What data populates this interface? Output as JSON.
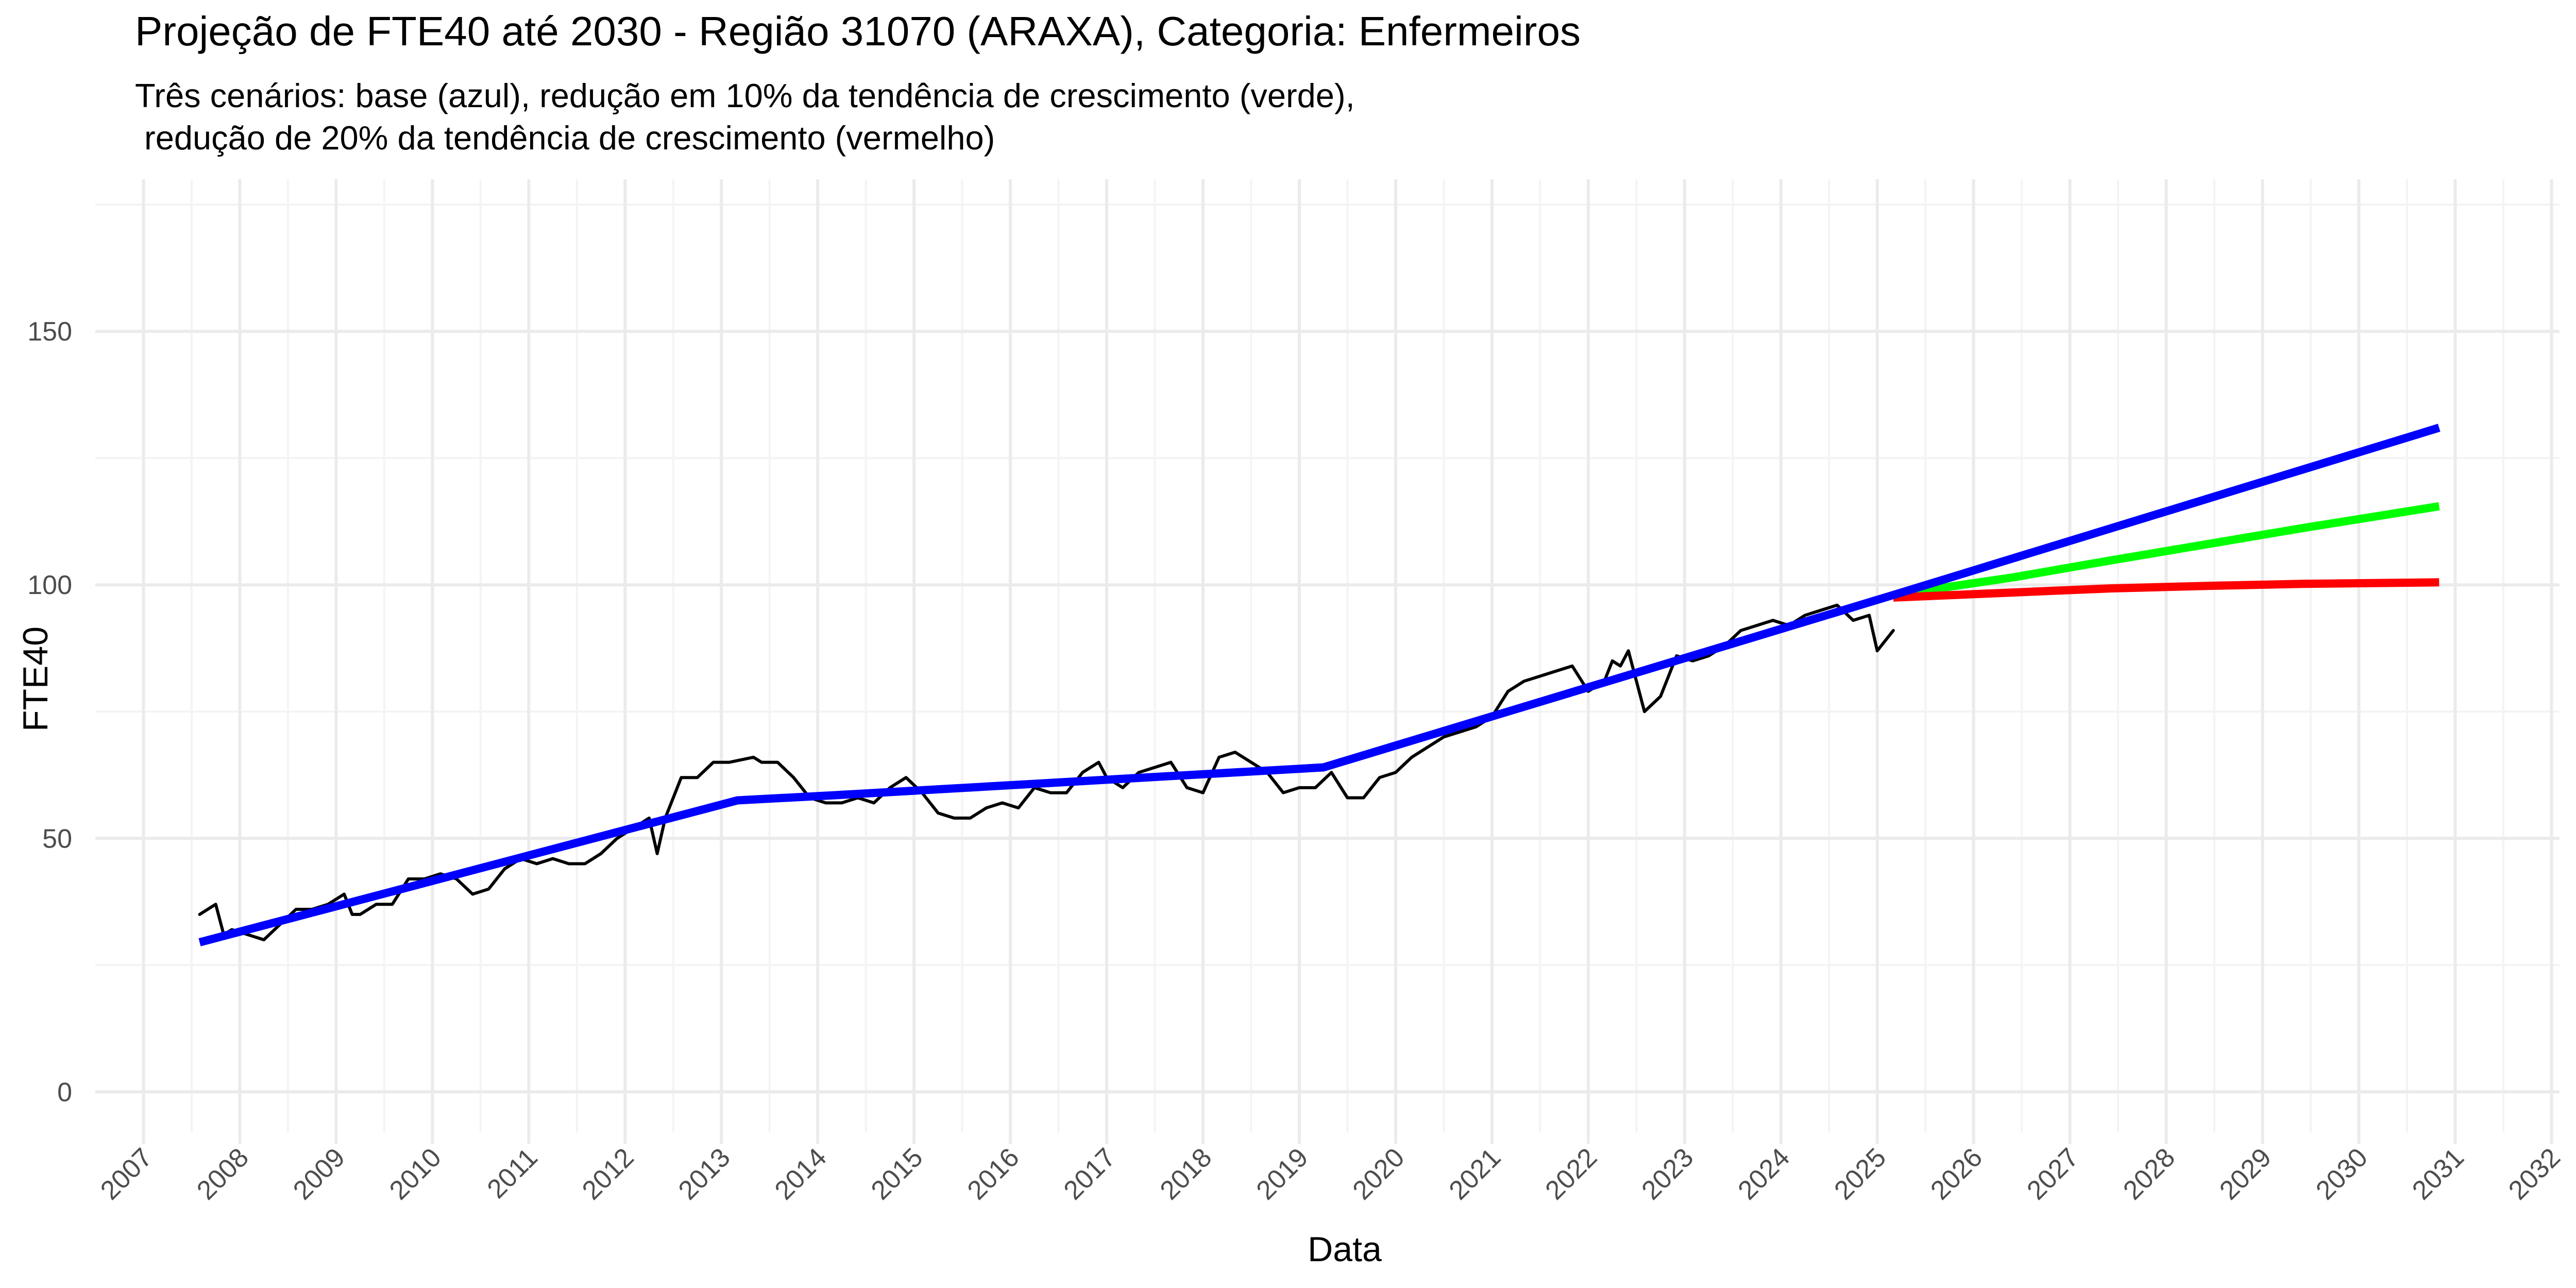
{
  "chart_data": {
    "type": "line",
    "title": "Projeção de FTE40 até 2030 - Região 31070 (ARAXA), Categoria: Enfermeiros",
    "subtitle_lines": [
      "Três cenários: base (azul), redução em 10% da tendência de crescimento (verde),",
      " redução de 20% da tendência de crescimento (vermelho)"
    ],
    "xlabel": "Data",
    "ylabel": "FTE40",
    "xlim": [
      "2006-07-01",
      "2032-02-01"
    ],
    "ylim": [
      -8,
      180
    ],
    "x_ticks": [
      "2007",
      "2008",
      "2009",
      "2010",
      "2011",
      "2012",
      "2013",
      "2014",
      "2015",
      "2016",
      "2017",
      "2018",
      "2019",
      "2020",
      "2021",
      "2022",
      "2023",
      "2024",
      "2025",
      "2026",
      "2027",
      "2028",
      "2029",
      "2030",
      "2031",
      "2032"
    ],
    "y_ticks": [
      0,
      50,
      100,
      150
    ],
    "grid": true,
    "colors": {
      "observed": "#000000",
      "base": "#0000ff",
      "green": "#00ff00",
      "red": "#ff0000",
      "grid_major": "#ebebeb",
      "grid_minor": "#f4f4f4",
      "axis_text": "#4d4d4d"
    },
    "series": [
      {
        "key": "observed",
        "x": [
          "2007-08",
          "2007-10",
          "2007-11",
          "2007-12",
          "2008-02",
          "2008-04",
          "2008-06",
          "2008-08",
          "2008-10",
          "2008-12",
          "2009-02",
          "2009-03",
          "2009-04",
          "2009-06",
          "2009-08",
          "2009-10",
          "2009-12",
          "2010-02",
          "2010-04",
          "2010-06",
          "2010-08",
          "2010-10",
          "2010-12",
          "2011-02",
          "2011-04",
          "2011-06",
          "2011-08",
          "2011-10",
          "2011-12",
          "2012-02",
          "2012-04",
          "2012-05",
          "2012-06",
          "2012-08",
          "2012-10",
          "2012-12",
          "2013-02",
          "2013-05",
          "2013-06",
          "2013-08",
          "2013-10",
          "2013-12",
          "2014-02",
          "2014-04",
          "2014-06",
          "2014-08",
          "2014-10",
          "2014-12",
          "2015-02",
          "2015-04",
          "2015-06",
          "2015-08",
          "2015-10",
          "2015-12",
          "2016-02",
          "2016-04",
          "2016-06",
          "2016-08",
          "2016-10",
          "2016-12",
          "2017-01",
          "2017-03",
          "2017-05",
          "2017-07",
          "2017-09",
          "2017-11",
          "2018-01",
          "2018-03",
          "2018-05",
          "2018-07",
          "2018-09",
          "2018-11",
          "2019-01",
          "2019-03",
          "2019-05",
          "2019-07",
          "2019-09",
          "2019-11",
          "2020-01",
          "2020-03",
          "2020-05",
          "2020-07",
          "2020-09",
          "2020-11",
          "2021-01",
          "2021-03",
          "2021-05",
          "2021-07",
          "2021-09",
          "2021-11",
          "2022-01",
          "2022-03",
          "2022-04",
          "2022-05",
          "2022-06",
          "2022-08",
          "2022-10",
          "2022-12",
          "2023-02",
          "2023-04",
          "2023-06",
          "2023-08",
          "2023-10",
          "2023-12",
          "2024-02",
          "2024-04",
          "2024-06",
          "2024-08",
          "2024-10",
          "2024-12",
          "2025-01",
          "2025-03"
        ],
        "y": [
          35,
          37,
          31,
          32,
          31,
          30,
          33,
          36,
          36,
          37,
          39,
          35,
          35,
          37,
          37,
          42,
          42,
          43,
          42,
          39,
          40,
          44,
          46,
          45,
          46,
          45,
          45,
          47,
          50,
          52,
          54,
          47,
          54,
          62,
          62,
          65,
          65,
          66,
          65,
          65,
          62,
          58,
          57,
          57,
          58,
          57,
          60,
          62,
          59,
          55,
          54,
          54,
          56,
          57,
          56,
          60,
          59,
          59,
          63,
          65,
          62,
          60,
          63,
          64,
          65,
          60,
          59,
          66,
          67,
          65,
          63,
          59,
          60,
          60,
          63,
          58,
          58,
          62,
          63,
          66,
          68,
          70,
          71,
          72,
          74,
          79,
          81,
          82,
          83,
          84,
          79,
          81,
          85,
          84,
          87,
          75,
          78,
          86,
          85,
          86,
          88,
          91,
          92,
          93,
          92,
          94,
          95,
          96,
          93,
          94,
          87,
          91
        ]
      },
      {
        "key": "base",
        "x": [
          "2007-08",
          "2013-03",
          "2014-03",
          "2019-04",
          "2025-03",
          "2030-11"
        ],
        "y": [
          29.5,
          57.5,
          58.5,
          64,
          98,
          131
        ]
      },
      {
        "key": "green",
        "x": [
          "2025-03",
          "2026-06",
          "2027-06",
          "2028-06",
          "2029-06",
          "2030-11"
        ],
        "y": [
          98,
          101.5,
          104.8,
          108,
          111.2,
          115.5
        ]
      },
      {
        "key": "red",
        "x": [
          "2025-03",
          "2026-06",
          "2027-06",
          "2028-06",
          "2029-06",
          "2030-11"
        ],
        "y": [
          97.5,
          98.5,
          99.3,
          99.8,
          100.2,
          100.5
        ]
      }
    ]
  }
}
